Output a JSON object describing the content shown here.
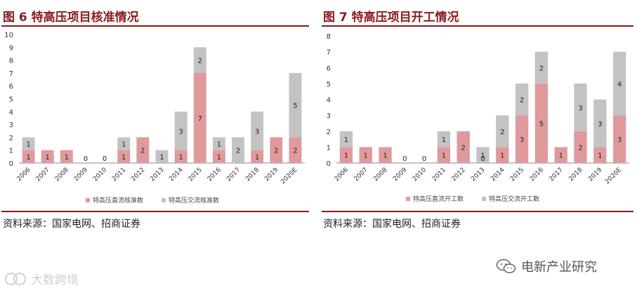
{
  "colors": {
    "direct": "#e09a9c",
    "ac": "#c3c3c3",
    "accent": "#8b1a1a"
  },
  "panels": [
    {
      "title": "图 6  特高压项目核准情况",
      "source": "资料来源：国家电网、招商证券"
    },
    {
      "title": "图 7  特高压项目开工情况",
      "source": "资料来源：国家电网、招商证券"
    }
  ],
  "watermark_right": "电新产业研究",
  "watermark_left": "大数跨境",
  "chart_data": [
    {
      "type": "bar",
      "stacked": true,
      "categories": [
        "2006",
        "2007",
        "2008",
        "2009",
        "2010",
        "2011",
        "2012",
        "2013",
        "2014",
        "2015",
        "2016",
        "2017",
        "2018",
        "2019",
        "2020E"
      ],
      "ylim": [
        0,
        10
      ],
      "yticks": [
        0,
        1,
        2,
        3,
        4,
        5,
        6,
        7,
        8,
        9,
        10
      ],
      "legend_position": "bottom",
      "series": [
        {
          "name": "特高压直流核准数",
          "color": "#e09a9c",
          "values": [
            1,
            1,
            1,
            0,
            0,
            1,
            2,
            0,
            1,
            7,
            1,
            0,
            1,
            2,
            2
          ]
        },
        {
          "name": "特高压交流核准数",
          "color": "#c3c3c3",
          "values": [
            1,
            0,
            0,
            0,
            0,
            1,
            0,
            1,
            3,
            2,
            1,
            2,
            3,
            0,
            5
          ]
        }
      ],
      "data_labels": {
        "direct": [
          "1",
          "1",
          "1",
          "0",
          "0",
          "1",
          "2",
          "",
          "1",
          "7",
          "1",
          "",
          "1",
          "2",
          "2"
        ],
        "ac": [
          "1",
          "",
          "",
          "",
          "",
          "1",
          "",
          "1",
          "3",
          "2",
          "1",
          "2",
          "3",
          "",
          "5"
        ]
      }
    },
    {
      "type": "bar",
      "stacked": true,
      "categories": [
        "2006",
        "2007",
        "2008",
        "2009",
        "2010",
        "2011",
        "2012",
        "2013",
        "2014",
        "2015",
        "2016",
        "2017",
        "2018",
        "2019",
        "2020E"
      ],
      "ylim": [
        0,
        8
      ],
      "yticks": [
        0,
        1,
        2,
        3,
        4,
        5,
        6,
        7,
        8
      ],
      "legend_position": "bottom",
      "series": [
        {
          "name": "特高压直流开工数",
          "color": "#e09a9c",
          "values": [
            1,
            1,
            1,
            0,
            0,
            1,
            2,
            0,
            1,
            3,
            5,
            1,
            2,
            1,
            3
          ]
        },
        {
          "name": "特高压交流开工数",
          "color": "#c3c3c3",
          "values": [
            1,
            0,
            0,
            0,
            0,
            1,
            0,
            1,
            2,
            2,
            2,
            0,
            3,
            3,
            4
          ]
        }
      ],
      "data_labels": {
        "direct": [
          "1",
          "1",
          "1",
          "0",
          "0",
          "1",
          "2",
          "0",
          "1",
          "3",
          "5",
          "1",
          "2",
          "1",
          "3"
        ],
        "ac": [
          "1",
          "",
          "",
          "",
          "",
          "1",
          "",
          "1",
          "2",
          "2",
          "2",
          "",
          "3",
          "3",
          "4"
        ]
      }
    }
  ]
}
